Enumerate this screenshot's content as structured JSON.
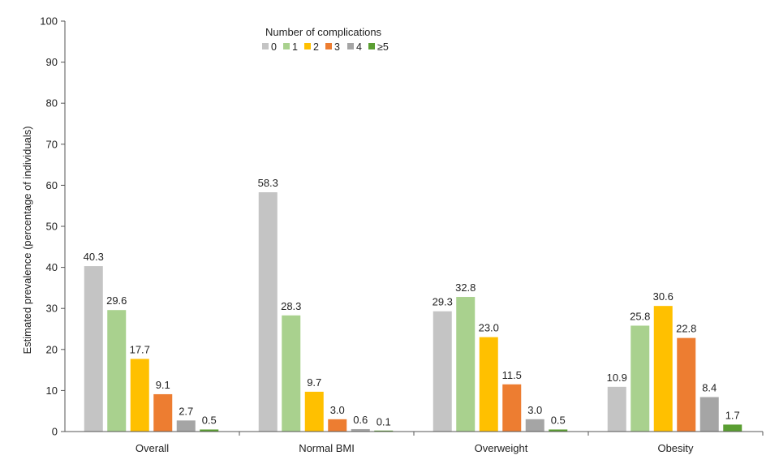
{
  "chart_data": {
    "type": "bar",
    "ylabel": "Estimated prevalence (percentage of individuals)",
    "xlabel": "",
    "ylim": [
      0,
      100
    ],
    "yticks": [
      0,
      10,
      20,
      30,
      40,
      50,
      60,
      70,
      80,
      90,
      100
    ],
    "legend": {
      "title": "Number of complications",
      "placement": "top-center"
    },
    "categories": [
      "Overall",
      "Normal BMI",
      "Overweight",
      "Obesity"
    ],
    "series": [
      {
        "name": "0",
        "color": "#c4c4c4",
        "values": [
          40.3,
          58.3,
          29.3,
          10.9
        ],
        "labels": [
          "40.3",
          "58.3",
          "29.3",
          "10.9"
        ]
      },
      {
        "name": "1",
        "color": "#a9d18e",
        "values": [
          29.6,
          28.3,
          32.8,
          25.8
        ],
        "labels": [
          "29.6",
          "28.3",
          "32.8",
          "25.8"
        ]
      },
      {
        "name": "2",
        "color": "#ffc000",
        "values": [
          17.7,
          9.7,
          23.0,
          30.6
        ],
        "labels": [
          "17.7",
          "9.7",
          "23.0",
          "30.6"
        ]
      },
      {
        "name": "3",
        "color": "#ed7d31",
        "values": [
          9.1,
          3.0,
          11.5,
          22.8
        ],
        "labels": [
          "9.1",
          "3.0",
          "11.5",
          "22.8"
        ]
      },
      {
        "name": "4",
        "color": "#a5a5a5",
        "values": [
          2.7,
          0.6,
          3.0,
          8.4
        ],
        "labels": [
          "2.7",
          "0.6",
          "3.0",
          "8.4"
        ]
      },
      {
        "name": "≥5",
        "color": "#5a9e32",
        "values": [
          0.5,
          0.1,
          0.5,
          1.7
        ],
        "labels": [
          "0.5",
          "0.1",
          "0.5",
          "1.7"
        ]
      }
    ]
  }
}
